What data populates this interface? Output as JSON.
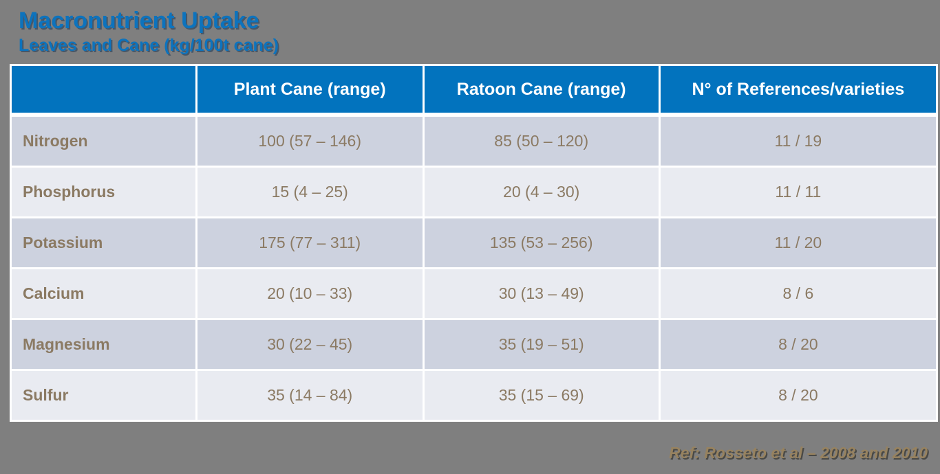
{
  "slide": {
    "title": "Macronutrient Uptake",
    "subtitle": "Leaves and Cane (kg/100t cane)",
    "reference": "Ref: Rosseto et al – 2008 and 2010"
  },
  "table": {
    "columns": {
      "nutrient": "",
      "plant_cane": "Plant Cane (range)",
      "ratoon_cane": "Ratoon Cane (range)",
      "references": "N° of References/varieties"
    },
    "rows": [
      {
        "nutrient": "Nitrogen",
        "plant_cane": "100 (57 – 146)",
        "ratoon_cane": "85 (50 – 120)",
        "references": "11 / 19"
      },
      {
        "nutrient": "Phosphorus",
        "plant_cane": "15 (4 – 25)",
        "ratoon_cane": "20 (4 – 30)",
        "references": "11 / 11"
      },
      {
        "nutrient": "Potassium",
        "plant_cane": "175 (77 – 311)",
        "ratoon_cane": "135 (53 – 256)",
        "references": "11 / 20"
      },
      {
        "nutrient": "Calcium",
        "plant_cane": "20 (10 – 33)",
        "ratoon_cane": "30 (13 – 49)",
        "references": "8 / 6"
      },
      {
        "nutrient": "Magnesium",
        "plant_cane": "30 (22 – 45)",
        "ratoon_cane": "35 (19 – 51)",
        "references": "8 / 20"
      },
      {
        "nutrient": "Sulfur",
        "plant_cane": "35 (14 – 84)",
        "ratoon_cane": "35 (15 – 69)",
        "references": "8 / 20"
      }
    ]
  },
  "colors": {
    "background": "#7f7f7f",
    "header_blue": "#0273be",
    "title_blue": "#0d73bd",
    "row_odd": "#cdd2df",
    "row_even": "#e9ebf1",
    "body_text": "#8b7a63",
    "reference_text": "#97825f",
    "grid_white": "#ffffff"
  }
}
